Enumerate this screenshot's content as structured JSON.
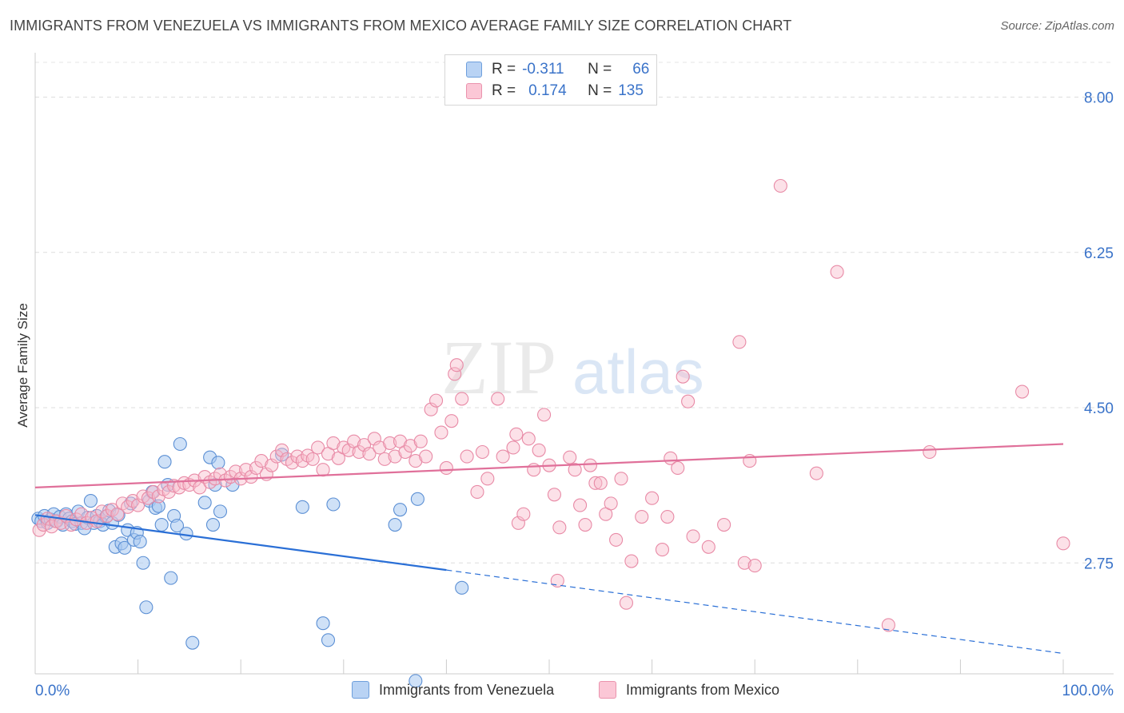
{
  "title": "IMMIGRANTS FROM VENEZUELA VS IMMIGRANTS FROM MEXICO AVERAGE FAMILY SIZE CORRELATION CHART",
  "source": "Source: ZipAtlas.com",
  "watermark": {
    "zip": "ZIP",
    "atlas": "atlas"
  },
  "legend": {
    "rows": [
      {
        "r_label": "R =",
        "r_value": "-0.311",
        "n_label": "N =",
        "n_value": "66"
      },
      {
        "r_label": "R =",
        "r_value": "0.174",
        "n_label": "N =",
        "n_value": "135"
      }
    ]
  },
  "colors": {
    "venezuela_fill": "#a8c8f0",
    "venezuela_stroke": "#5b8fd4",
    "venezuela_line": "#2a6fd6",
    "mexico_fill": "#f8bccd",
    "mexico_stroke": "#e88aa6",
    "mexico_line": "#e0709a",
    "axis_label": "#3a73c9"
  },
  "chart_data": {
    "type": "scatter",
    "xlabel": "",
    "ylabel": "Average Family Size",
    "xlim": [
      0,
      100
    ],
    "ylim": [
      1.5,
      8.5
    ],
    "x_tick_labels": [
      "0.0%",
      "100.0%"
    ],
    "y_ticks": [
      2.75,
      4.5,
      6.25,
      8.0
    ],
    "y_tick_labels": [
      "2.75",
      "4.50",
      "6.25",
      "8.00"
    ],
    "grid": true,
    "legend_position": "top-center",
    "series": [
      {
        "name": "Immigrants from Venezuela",
        "trend": {
          "x0": 0,
          "y0": 3.29,
          "x1": 40,
          "y1": 2.67,
          "x_end": 100,
          "y_end": 1.73,
          "dashed_after": 40
        },
        "points": [
          [
            0.3,
            3.25
          ],
          [
            0.6,
            3.22
          ],
          [
            0.9,
            3.28
          ],
          [
            1.2,
            3.2
          ],
          [
            1.5,
            3.24
          ],
          [
            1.8,
            3.3
          ],
          [
            2.1,
            3.22
          ],
          [
            2.4,
            3.27
          ],
          [
            2.7,
            3.18
          ],
          [
            3.0,
            3.3
          ],
          [
            3.3,
            3.25
          ],
          [
            3.6,
            3.22
          ],
          [
            3.9,
            3.19
          ],
          [
            4.2,
            3.33
          ],
          [
            4.5,
            3.2
          ],
          [
            4.8,
            3.14
          ],
          [
            5.1,
            3.26
          ],
          [
            5.4,
            3.45
          ],
          [
            5.7,
            3.2
          ],
          [
            6.0,
            3.28
          ],
          [
            6.3,
            3.22
          ],
          [
            6.6,
            3.18
          ],
          [
            6.9,
            3.27
          ],
          [
            7.2,
            3.34
          ],
          [
            7.5,
            3.2
          ],
          [
            7.8,
            2.93
          ],
          [
            8.1,
            3.29
          ],
          [
            8.4,
            2.97
          ],
          [
            8.7,
            2.92
          ],
          [
            9.0,
            3.12
          ],
          [
            9.3,
            3.42
          ],
          [
            9.6,
            3.01
          ],
          [
            9.9,
            3.09
          ],
          [
            10.2,
            2.99
          ],
          [
            10.5,
            2.75
          ],
          [
            10.8,
            2.25
          ],
          [
            11.1,
            3.45
          ],
          [
            11.4,
            3.55
          ],
          [
            11.7,
            3.37
          ],
          [
            12.0,
            3.39
          ],
          [
            12.3,
            3.18
          ],
          [
            12.6,
            3.89
          ],
          [
            12.9,
            3.63
          ],
          [
            13.2,
            2.58
          ],
          [
            13.5,
            3.28
          ],
          [
            13.8,
            3.17
          ],
          [
            14.1,
            4.09
          ],
          [
            14.7,
            3.08
          ],
          [
            15.3,
            1.85
          ],
          [
            16.5,
            3.43
          ],
          [
            17.0,
            3.94
          ],
          [
            17.3,
            3.18
          ],
          [
            18.0,
            3.33
          ],
          [
            17.5,
            3.63
          ],
          [
            19.2,
            3.63
          ],
          [
            24.0,
            3.97
          ],
          [
            26.0,
            3.38
          ],
          [
            28.0,
            2.07
          ],
          [
            28.5,
            1.88
          ],
          [
            29.0,
            3.41
          ],
          [
            35.0,
            3.18
          ],
          [
            35.5,
            3.35
          ],
          [
            37.2,
            3.47
          ],
          [
            41.5,
            2.47
          ],
          [
            37.0,
            1.42
          ],
          [
            17.8,
            3.88
          ]
        ]
      },
      {
        "name": "Immigrants from Mexico",
        "trend": {
          "x0": 0,
          "y0": 3.6,
          "x1": 100,
          "y1": 4.09
        },
        "points": [
          [
            0.4,
            3.12
          ],
          [
            0.8,
            3.18
          ],
          [
            1.2,
            3.25
          ],
          [
            1.6,
            3.16
          ],
          [
            2.0,
            3.22
          ],
          [
            2.5,
            3.2
          ],
          [
            3.0,
            3.28
          ],
          [
            3.5,
            3.18
          ],
          [
            4.0,
            3.24
          ],
          [
            4.5,
            3.3
          ],
          [
            5.0,
            3.2
          ],
          [
            5.5,
            3.26
          ],
          [
            6.0,
            3.22
          ],
          [
            6.5,
            3.33
          ],
          [
            7.0,
            3.28
          ],
          [
            7.5,
            3.35
          ],
          [
            8.0,
            3.3
          ],
          [
            8.5,
            3.42
          ],
          [
            9.0,
            3.38
          ],
          [
            9.5,
            3.45
          ],
          [
            10.0,
            3.4
          ],
          [
            10.5,
            3.5
          ],
          [
            11.0,
            3.48
          ],
          [
            11.5,
            3.55
          ],
          [
            12.0,
            3.5
          ],
          [
            12.5,
            3.58
          ],
          [
            13.0,
            3.55
          ],
          [
            13.5,
            3.62
          ],
          [
            14.0,
            3.6
          ],
          [
            14.5,
            3.65
          ],
          [
            15.0,
            3.63
          ],
          [
            15.5,
            3.68
          ],
          [
            16.0,
            3.6
          ],
          [
            16.5,
            3.72
          ],
          [
            17.0,
            3.66
          ],
          [
            17.5,
            3.7
          ],
          [
            18.0,
            3.75
          ],
          [
            18.5,
            3.68
          ],
          [
            19.0,
            3.72
          ],
          [
            19.5,
            3.78
          ],
          [
            20.0,
            3.7
          ],
          [
            20.5,
            3.8
          ],
          [
            21.0,
            3.72
          ],
          [
            21.5,
            3.82
          ],
          [
            22.0,
            3.9
          ],
          [
            22.5,
            3.75
          ],
          [
            23.0,
            3.85
          ],
          [
            23.5,
            3.95
          ],
          [
            24.0,
            4.02
          ],
          [
            24.5,
            3.92
          ],
          [
            25.0,
            3.88
          ],
          [
            25.5,
            3.95
          ],
          [
            26.0,
            3.9
          ],
          [
            26.5,
            3.96
          ],
          [
            27.0,
            3.92
          ],
          [
            27.5,
            4.05
          ],
          [
            28.0,
            3.8
          ],
          [
            28.5,
            3.98
          ],
          [
            29.0,
            4.1
          ],
          [
            29.5,
            3.93
          ],
          [
            30.0,
            4.05
          ],
          [
            30.5,
            4.02
          ],
          [
            31.0,
            4.12
          ],
          [
            31.5,
            4.0
          ],
          [
            32.0,
            4.08
          ],
          [
            32.5,
            3.98
          ],
          [
            33.0,
            4.15
          ],
          [
            33.5,
            4.05
          ],
          [
            34.0,
            3.92
          ],
          [
            34.5,
            4.1
          ],
          [
            35.0,
            3.95
          ],
          [
            35.5,
            4.12
          ],
          [
            36.0,
            4.0
          ],
          [
            36.5,
            4.07
          ],
          [
            37.0,
            3.9
          ],
          [
            37.5,
            4.12
          ],
          [
            38.0,
            3.95
          ],
          [
            38.5,
            4.48
          ],
          [
            39.0,
            4.58
          ],
          [
            39.5,
            4.22
          ],
          [
            40.0,
            3.82
          ],
          [
            40.5,
            4.35
          ],
          [
            40.8,
            4.88
          ],
          [
            41.0,
            4.98
          ],
          [
            41.5,
            4.6
          ],
          [
            42.0,
            3.95
          ],
          [
            43.0,
            3.55
          ],
          [
            43.5,
            4.0
          ],
          [
            44.0,
            3.7
          ],
          [
            45.0,
            4.6
          ],
          [
            45.5,
            3.95
          ],
          [
            46.5,
            4.05
          ],
          [
            46.8,
            4.2
          ],
          [
            47.0,
            3.2
          ],
          [
            47.5,
            3.3
          ],
          [
            48.0,
            4.15
          ],
          [
            48.5,
            3.8
          ],
          [
            49.0,
            4.02
          ],
          [
            49.5,
            4.42
          ],
          [
            50.0,
            3.85
          ],
          [
            50.5,
            3.52
          ],
          [
            50.8,
            2.55
          ],
          [
            51.0,
            3.15
          ],
          [
            52.0,
            3.94
          ],
          [
            52.5,
            3.8
          ],
          [
            53.0,
            3.4
          ],
          [
            53.5,
            3.18
          ],
          [
            54.0,
            3.85
          ],
          [
            54.5,
            3.65
          ],
          [
            55.0,
            3.65
          ],
          [
            55.5,
            3.3
          ],
          [
            56.0,
            3.42
          ],
          [
            56.5,
            3.01
          ],
          [
            57.0,
            3.7
          ],
          [
            57.5,
            2.3
          ],
          [
            58.0,
            2.77
          ],
          [
            59.0,
            3.27
          ],
          [
            60.0,
            3.48
          ],
          [
            61.0,
            2.9
          ],
          [
            61.5,
            3.27
          ],
          [
            61.8,
            3.93
          ],
          [
            62.5,
            3.82
          ],
          [
            63.0,
            4.85
          ],
          [
            63.5,
            4.57
          ],
          [
            64.0,
            3.05
          ],
          [
            65.5,
            2.93
          ],
          [
            67.0,
            3.18
          ],
          [
            68.5,
            5.24
          ],
          [
            69.0,
            2.75
          ],
          [
            69.5,
            3.9
          ],
          [
            70.0,
            2.72
          ],
          [
            72.5,
            7.0
          ],
          [
            76.0,
            3.76
          ],
          [
            78.0,
            6.03
          ],
          [
            83.0,
            2.05
          ],
          [
            87.0,
            4.0
          ],
          [
            96.0,
            4.68
          ],
          [
            100.0,
            2.97
          ]
        ]
      }
    ]
  },
  "bottom_legend": [
    {
      "label": "Immigrants from Venezuela"
    },
    {
      "label": "Immigrants from Mexico"
    }
  ]
}
